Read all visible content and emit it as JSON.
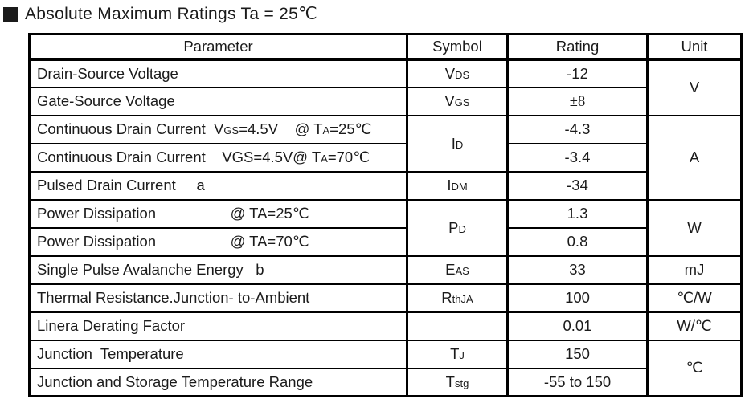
{
  "title": {
    "bullet_icon": "black-square-icon",
    "text": "Absolute Maximum Ratings Ta = 25℃"
  },
  "table": {
    "headers": [
      "Parameter",
      "Symbol",
      "Rating",
      "Unit"
    ],
    "rows": [
      {
        "param": {
          "segs": [
            {
              "t": "Drain-Source Voltage"
            }
          ]
        },
        "symbol": {
          "segs": [
            {
              "t": "V"
            },
            {
              "t": "DS",
              "sub": true
            }
          ]
        },
        "rating": {
          "segs": [
            {
              "t": "-12"
            }
          ]
        },
        "unit": {
          "segs": [
            {
              "t": "V"
            }
          ],
          "rowspan": 2
        }
      },
      {
        "param": {
          "segs": [
            {
              "t": "Gate-Source Voltage"
            }
          ]
        },
        "symbol": {
          "segs": [
            {
              "t": "V"
            },
            {
              "t": "GS",
              "sub": true
            }
          ]
        },
        "rating": {
          "segs": [
            {
              "t": "±8",
              "serif": true
            }
          ]
        }
      },
      {
        "param": {
          "segs": [
            {
              "t": "Continuous Drain Current  V"
            },
            {
              "t": "GS",
              "sub": true
            },
            {
              "t": "=4.5V    @ T"
            },
            {
              "t": "A",
              "sub": true
            },
            {
              "t": "=25"
            },
            {
              "t": "℃",
              "serif": true
            }
          ]
        },
        "symbol": {
          "segs": [
            {
              "t": "I"
            },
            {
              "t": "D",
              "sub": true
            }
          ],
          "rowspan": 2
        },
        "rating": {
          "segs": [
            {
              "t": "-4.3"
            }
          ]
        },
        "unit": {
          "segs": [
            {
              "t": "A"
            }
          ],
          "rowspan": 3
        }
      },
      {
        "param": {
          "segs": [
            {
              "t": "Continuous Drain Current    VGS=4.5V@ T"
            },
            {
              "t": "A",
              "sub": true
            },
            {
              "t": "=70"
            },
            {
              "t": "℃",
              "serif": true
            }
          ]
        },
        "rating": {
          "segs": [
            {
              "t": "-3.4"
            }
          ]
        }
      },
      {
        "param": {
          "segs": [
            {
              "t": "Pulsed Drain Current     a"
            }
          ]
        },
        "symbol": {
          "segs": [
            {
              "t": "I"
            },
            {
              "t": "DM",
              "sub": true
            }
          ]
        },
        "rating": {
          "segs": [
            {
              "t": "-34"
            }
          ]
        }
      },
      {
        "param": {
          "segs": [
            {
              "t": "Power Dissipation                  @ TA=25"
            },
            {
              "t": "℃",
              "serif": true
            }
          ]
        },
        "symbol": {
          "segs": [
            {
              "t": "P"
            },
            {
              "t": "D",
              "sub": true
            }
          ],
          "rowspan": 2
        },
        "rating": {
          "segs": [
            {
              "t": "1.3"
            }
          ]
        },
        "unit": {
          "segs": [
            {
              "t": "W"
            }
          ],
          "rowspan": 2
        }
      },
      {
        "param": {
          "segs": [
            {
              "t": "Power Dissipation                  @ TA=70"
            },
            {
              "t": "℃",
              "serif": true
            }
          ]
        },
        "rating": {
          "segs": [
            {
              "t": "0.8"
            }
          ]
        }
      },
      {
        "param": {
          "segs": [
            {
              "t": "Single Pulse Avalanche Energy   b"
            }
          ]
        },
        "symbol": {
          "segs": [
            {
              "t": "E"
            },
            {
              "t": "AS",
              "sub": true
            }
          ]
        },
        "rating": {
          "segs": [
            {
              "t": "33"
            }
          ]
        },
        "unit": {
          "segs": [
            {
              "t": "mJ"
            }
          ]
        }
      },
      {
        "param": {
          "segs": [
            {
              "t": "Thermal Resistance.Junction- to-Ambient"
            }
          ]
        },
        "symbol": {
          "segs": [
            {
              "t": "R"
            },
            {
              "t": "thJA",
              "sub": true
            }
          ]
        },
        "rating": {
          "segs": [
            {
              "t": "100"
            }
          ]
        },
        "unit": {
          "segs": [
            {
              "t": "℃",
              "serif": true
            },
            {
              "t": "/W"
            }
          ]
        }
      },
      {
        "param": {
          "segs": [
            {
              "t": "Linera Derating Factor"
            }
          ]
        },
        "symbol": {
          "segs": []
        },
        "rating": {
          "segs": [
            {
              "t": "0.01"
            }
          ]
        },
        "unit": {
          "segs": [
            {
              "t": "W/"
            },
            {
              "t": "℃",
              "serif": true
            }
          ]
        }
      },
      {
        "param": {
          "segs": [
            {
              "t": "Junction  Temperature"
            }
          ]
        },
        "symbol": {
          "segs": [
            {
              "t": "T"
            },
            {
              "t": "J",
              "sub": true
            }
          ]
        },
        "rating": {
          "segs": [
            {
              "t": "150"
            }
          ]
        },
        "unit": {
          "segs": [
            {
              "t": "℃",
              "serif": true
            }
          ],
          "rowspan": 2
        }
      },
      {
        "param": {
          "segs": [
            {
              "t": "Junction and Storage Temperature Range"
            }
          ]
        },
        "symbol": {
          "segs": [
            {
              "t": "T"
            },
            {
              "t": "stg",
              "sub": true
            }
          ]
        },
        "rating": {
          "segs": [
            {
              "t": "-55 to 150"
            }
          ]
        }
      }
    ]
  }
}
